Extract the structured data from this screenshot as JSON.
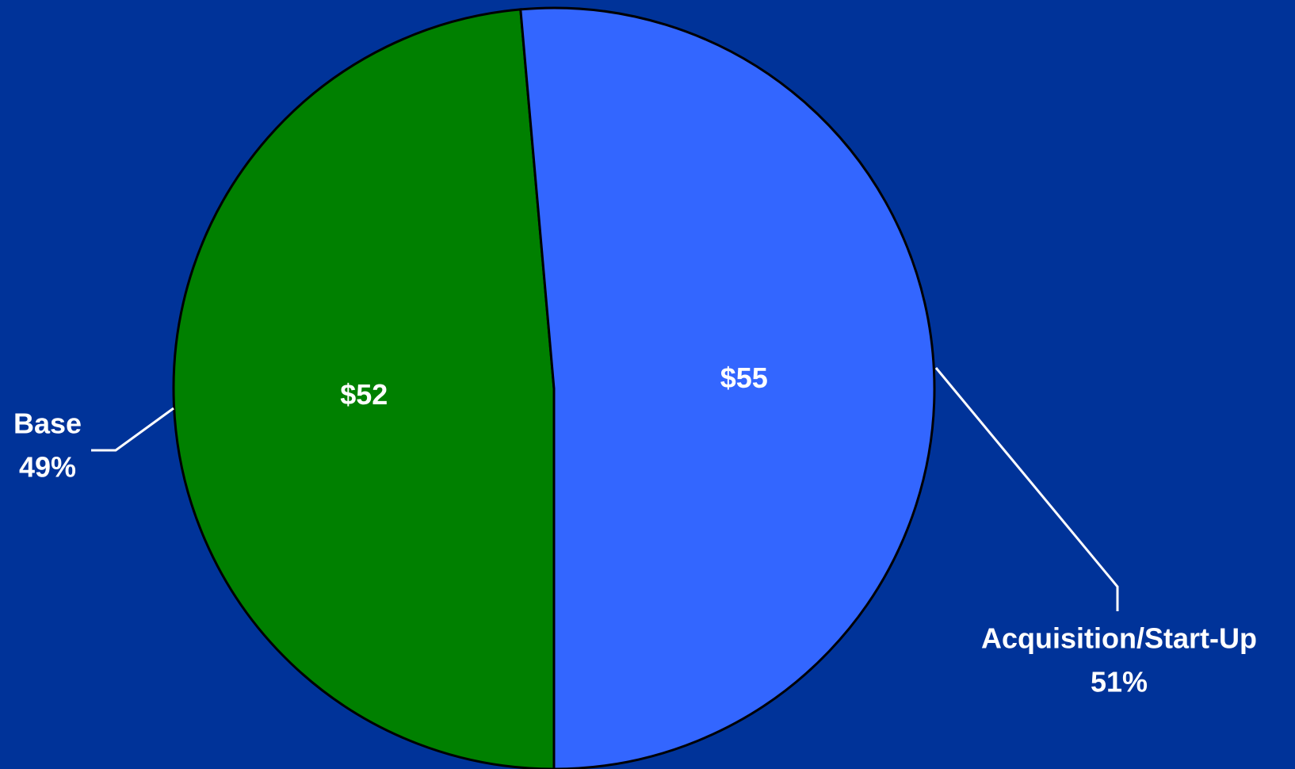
{
  "chart_data": {
    "type": "pie",
    "categories": [
      "Base",
      "Acquisition/Start-Up"
    ],
    "values": [
      52,
      55
    ],
    "value_labels": [
      "$52",
      "$55"
    ],
    "percents": [
      49,
      51
    ],
    "percent_labels": [
      "49%",
      "51%"
    ],
    "colors": [
      "#008000",
      "#3366ff"
    ]
  }
}
